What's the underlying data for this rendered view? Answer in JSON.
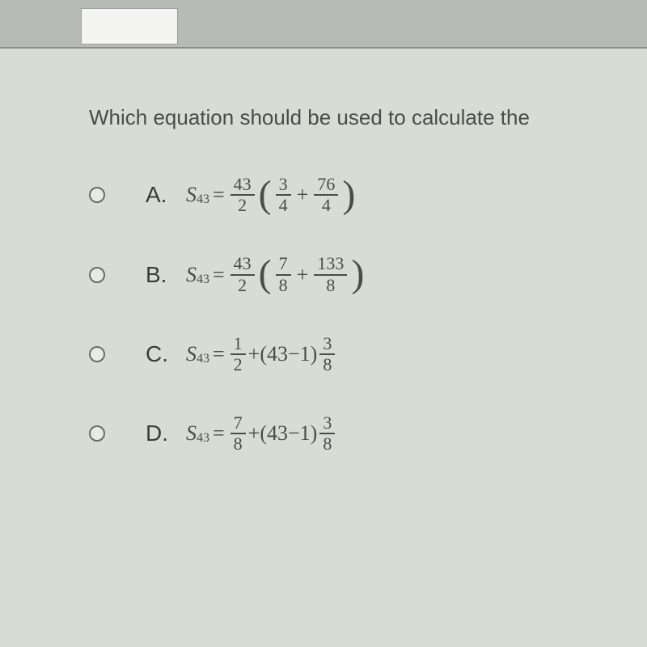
{
  "question": "Which equation should be used to calculate the",
  "options": [
    {
      "letter": "A.",
      "variable": "S",
      "subscript": "43",
      "eq": "=",
      "lead_frac": {
        "num": "43",
        "den": "2"
      },
      "inner": [
        {
          "type": "frac",
          "num": "3",
          "den": "4"
        },
        {
          "type": "op",
          "val": "+"
        },
        {
          "type": "frac",
          "num": "76",
          "den": "4"
        }
      ]
    },
    {
      "letter": "B.",
      "variable": "S",
      "subscript": "43",
      "eq": "=",
      "lead_frac": {
        "num": "43",
        "den": "2"
      },
      "inner": [
        {
          "type": "frac",
          "num": "7",
          "den": "8"
        },
        {
          "type": "op",
          "val": "+"
        },
        {
          "type": "frac",
          "num": "133",
          "den": "8"
        }
      ]
    },
    {
      "letter": "C.",
      "variable": "S",
      "subscript": "43",
      "eq": "=",
      "lead_frac": {
        "num": "1",
        "den": "2"
      },
      "mid_text": "+(43−1)",
      "tail_frac": {
        "num": "3",
        "den": "8"
      }
    },
    {
      "letter": "D.",
      "variable": "S",
      "subscript": "43",
      "eq": "=",
      "lead_frac": {
        "num": "7",
        "den": "8"
      },
      "mid_text": "+(43−1)",
      "tail_frac": {
        "num": "3",
        "den": "8"
      }
    }
  ],
  "colors": {
    "background": "#d8dcd5",
    "text": "#4a4c48",
    "topbar": "#b8bab5"
  },
  "typography": {
    "question_fontsize": 26,
    "letter_fontsize": 28,
    "equation_fontsize": 26,
    "frac_fontsize": 22
  }
}
